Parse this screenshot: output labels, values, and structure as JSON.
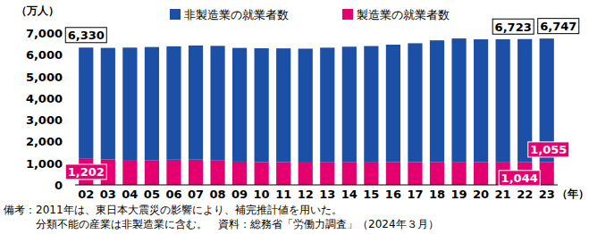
{
  "chart_data": {
    "type": "bar",
    "stacked": true,
    "y_label": "（万人）",
    "x_label": "（年）",
    "categories": [
      "02",
      "03",
      "04",
      "05",
      "06",
      "07",
      "08",
      "09",
      "10",
      "11",
      "12",
      "13",
      "14",
      "15",
      "16",
      "17",
      "18",
      "19",
      "20",
      "21",
      "22",
      "23"
    ],
    "series": [
      {
        "name": "非製造業の就業者数",
        "color": "#1c4fa6",
        "values": [
          5128,
          5138,
          5179,
          5214,
          5228,
          5262,
          5265,
          5241,
          5249,
          5244,
          5248,
          5287,
          5331,
          5366,
          5420,
          5478,
          5604,
          5687,
          5665,
          5676,
          5679,
          5692
        ]
      },
      {
        "name": "製造業の就業者数",
        "color": "#e5006f",
        "values": [
          1202,
          1178,
          1150,
          1142,
          1161,
          1165,
          1144,
          1073,
          1049,
          1049,
          1032,
          1039,
          1040,
          1035,
          1045,
          1052,
          1060,
          1063,
          1045,
          1037,
          1044,
          1055
        ],
        "value_labels": [
          "1,202",
          null,
          null,
          null,
          null,
          null,
          null,
          null,
          null,
          null,
          null,
          null,
          null,
          null,
          null,
          null,
          null,
          null,
          null,
          null,
          "1,044",
          "1,055"
        ]
      }
    ],
    "annotations": [
      {
        "x": "02",
        "y": 6330,
        "label": "6,330"
      },
      {
        "x": "22",
        "y": 6723,
        "label": "6,723"
      },
      {
        "x": "23",
        "y": 6747,
        "label": "6,747"
      }
    ],
    "ylim": [
      0,
      7000
    ],
    "yticks": [
      0,
      {
        "value": 1000,
        "label": "1,000"
      },
      {
        "value": 2000,
        "label": "2,000"
      },
      {
        "value": 3000,
        "label": "3,000"
      },
      {
        "value": 4000,
        "label": "4,000"
      },
      {
        "value": 5000,
        "label": "5,000"
      },
      {
        "value": 6000,
        "label": "6,000"
      },
      {
        "value": 7000,
        "label": "7,000"
      }
    ],
    "grid": false,
    "legend": "top",
    "notes": [
      "備考：2011年は、東日本大震災の影響により、補完推計値を用いた。",
      "　　　分類不能の産業は非製造業に含む。　資料：総務省「労働力調査」（2024年３月）"
    ]
  }
}
